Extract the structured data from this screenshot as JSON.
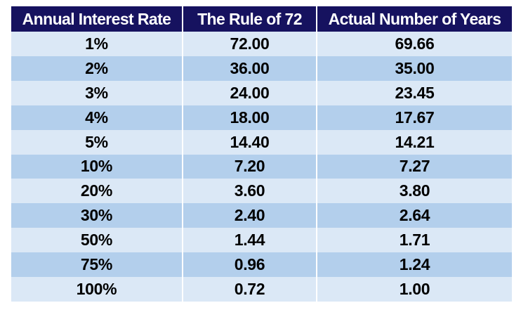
{
  "table": {
    "headers": [
      "Annual Interest Rate",
      "The Rule of 72",
      "Actual Number of Years"
    ],
    "rows": [
      [
        "1%",
        "72.00",
        "69.66"
      ],
      [
        "2%",
        "36.00",
        "35.00"
      ],
      [
        "3%",
        "24.00",
        "23.45"
      ],
      [
        "4%",
        "18.00",
        "17.67"
      ],
      [
        "5%",
        "14.40",
        "14.21"
      ],
      [
        "10%",
        "7.20",
        "7.27"
      ],
      [
        "20%",
        "3.60",
        "3.80"
      ],
      [
        "30%",
        "2.40",
        "2.64"
      ],
      [
        "50%",
        "1.44",
        "1.71"
      ],
      [
        "75%",
        "0.96",
        "1.24"
      ],
      [
        "100%",
        "0.72",
        "1.00"
      ]
    ]
  },
  "colors": {
    "header_bg": "#16125f",
    "header_text": "#ffffff",
    "row_light": "#dbe8f6",
    "row_dark": "#b3cfec"
  }
}
